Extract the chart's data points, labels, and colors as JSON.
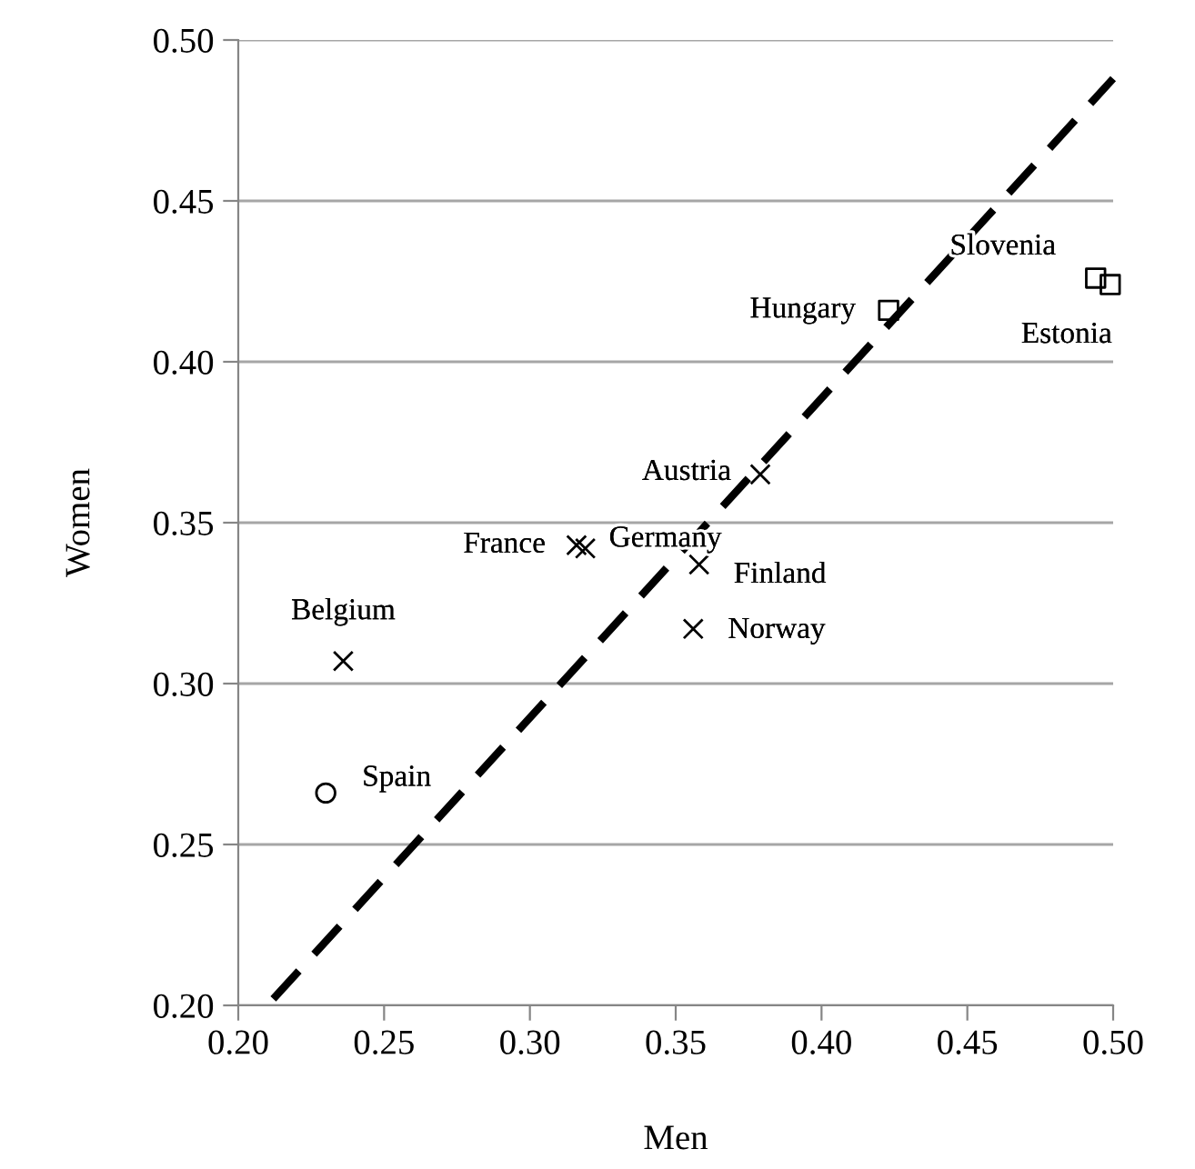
{
  "chart_data": {
    "type": "scatter",
    "xlabel": "Men",
    "ylabel": "Women",
    "series": [
      {
        "marker": "cross",
        "color": "#000000",
        "x": [
          0.236,
          0.316,
          0.319,
          0.358,
          0.356,
          0.379
        ],
        "values": [
          0.307,
          0.343,
          0.342,
          0.337,
          0.317,
          0.365
        ]
      },
      {
        "marker": "square",
        "color": "#000000",
        "x": [
          0.423,
          0.494,
          0.499
        ],
        "values": [
          0.416,
          0.426,
          0.424
        ]
      },
      {
        "marker": "circle",
        "color": "#000000",
        "x": [
          0.23
        ],
        "values": [
          0.266
        ]
      },
      {
        "type": "line",
        "marker": "none",
        "line_style": "dashed",
        "color": "#000000",
        "x": [
          0.212,
          0.5
        ],
        "values": [
          0.202,
          0.488
        ]
      }
    ],
    "annotations": [
      {
        "text": "Belgium",
        "x": 0.236,
        "y": 0.307
      },
      {
        "text": "France",
        "x": 0.316,
        "y": 0.343
      },
      {
        "text": "Germany",
        "x": 0.319,
        "y": 0.342
      },
      {
        "text": "Finland",
        "x": 0.358,
        "y": 0.337
      },
      {
        "text": "Norway",
        "x": 0.356,
        "y": 0.317
      },
      {
        "text": "Austria",
        "x": 0.379,
        "y": 0.365
      },
      {
        "text": "Hungary",
        "x": 0.423,
        "y": 0.416
      },
      {
        "text": "Slovenia",
        "x": 0.494,
        "y": 0.426
      },
      {
        "text": "Estonia",
        "x": 0.499,
        "y": 0.424
      },
      {
        "text": "Spain",
        "x": 0.23,
        "y": 0.266
      }
    ],
    "xlim": [
      0.2,
      0.5
    ],
    "xticks": [
      {
        "value": 0.2,
        "label": "0.20"
      },
      {
        "value": 0.25,
        "label": "0.25"
      },
      {
        "value": 0.3,
        "label": "0.30"
      },
      {
        "value": 0.35,
        "label": "0.35"
      },
      {
        "value": 0.4,
        "label": "0.40"
      },
      {
        "value": 0.45,
        "label": "0.45"
      },
      {
        "value": 0.5,
        "label": "0.50"
      }
    ],
    "ylim": [
      0.2,
      0.5
    ],
    "yticks": [
      {
        "value": 0.2,
        "label": "0.20"
      },
      {
        "value": 0.25,
        "label": "0.25"
      },
      {
        "value": 0.3,
        "label": "0.30"
      },
      {
        "value": 0.35,
        "label": "0.35"
      },
      {
        "value": 0.4,
        "label": "0.40"
      },
      {
        "value": 0.45,
        "label": "0.45"
      },
      {
        "value": 0.5,
        "label": "0.50"
      }
    ],
    "grid": "y",
    "legend": false
  }
}
